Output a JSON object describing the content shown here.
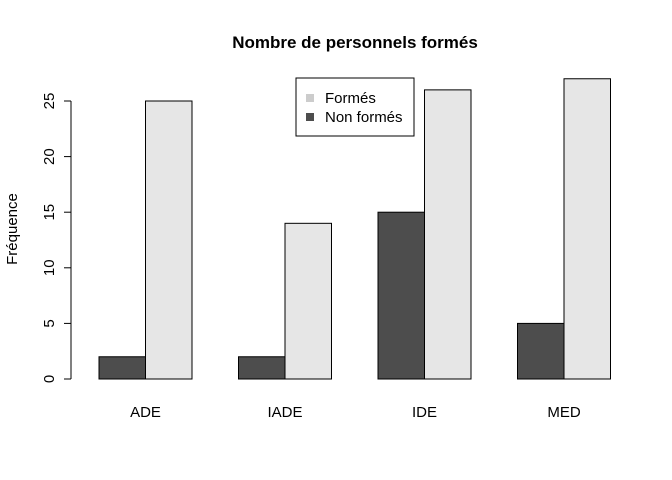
{
  "chart_data": {
    "type": "bar",
    "title": "Nombre de personnels formés",
    "xlabel": "",
    "ylabel": "Fréquence",
    "categories": [
      "ADE",
      "IADE",
      "IDE",
      "MED"
    ],
    "series": [
      {
        "name": "Non formés",
        "values": [
          2,
          2,
          15,
          5
        ],
        "color": "#4d4d4d"
      },
      {
        "name": "Formés",
        "values": [
          25,
          14,
          26,
          27
        ],
        "color": "#e6e6e6"
      }
    ],
    "legend_entries": [
      {
        "label": "Formés",
        "color": "#cccccc"
      },
      {
        "label": "Non formés",
        "color": "#4d4d4d"
      }
    ],
    "yticks": [
      0,
      5,
      10,
      15,
      20,
      25
    ],
    "ylim": [
      0,
      27
    ],
    "grid": false,
    "legend_position": "top-center"
  }
}
